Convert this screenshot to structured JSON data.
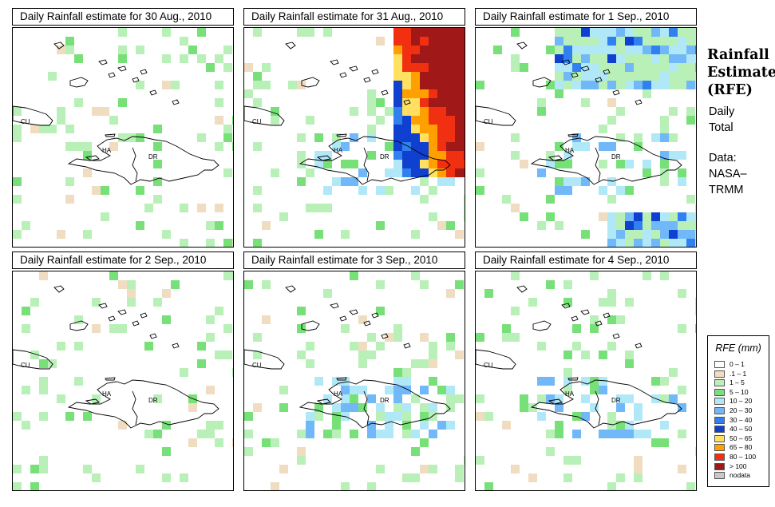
{
  "panels": [
    {
      "title": "Daily Rainfall estimate for  30 Aug., 2010",
      "intensity": 1
    },
    {
      "title": "Daily Rainfall estimate for  31 Aug., 2010",
      "intensity": 5
    },
    {
      "title": "Daily Rainfall estimate for  1 Sep., 2010",
      "intensity": 3
    },
    {
      "title": "Daily Rainfall estimate for  2 Sep., 2010",
      "intensity": 1
    },
    {
      "title": "Daily Rainfall estimate for  3 Sep., 2010",
      "intensity": 2
    },
    {
      "title": "Daily Rainfall estimate for  4 Sep., 2010",
      "intensity": 2
    }
  ],
  "map_labels": {
    "cu": "CU",
    "ha": "HA",
    "dr": "DR"
  },
  "sidebar": {
    "title_lines": [
      "Rainfall",
      "Estimate",
      "(RFE)"
    ],
    "desc_lines": [
      "Daily",
      "Total"
    ],
    "data_lines": [
      "Data:",
      "NASA–",
      "TRMM"
    ]
  },
  "legend": {
    "title": "RFE (mm)",
    "items": [
      {
        "label": "0 – 1",
        "color": "#ffffff"
      },
      {
        "label": ".1 – 1",
        "color": "#f0dcc0"
      },
      {
        "label": "1 – 5",
        "color": "#b8f0b8"
      },
      {
        "label": "5 – 10",
        "color": "#78e078"
      },
      {
        "label": "10 – 20",
        "color": "#b0e8f8"
      },
      {
        "label": "20 – 30",
        "color": "#70b8f8"
      },
      {
        "label": "30 – 40",
        "color": "#3080f0"
      },
      {
        "label": "40 – 50",
        "color": "#1040d0"
      },
      {
        "label": "50 – 65",
        "color": "#ffe060"
      },
      {
        "label": "65 – 80",
        "color": "#ffa000"
      },
      {
        "label": "80 – 100",
        "color": "#f03010"
      },
      {
        "label": "> 100",
        "color": "#a01818"
      },
      {
        "label": "nodata",
        "color": "#c8c8c8"
      }
    ]
  }
}
